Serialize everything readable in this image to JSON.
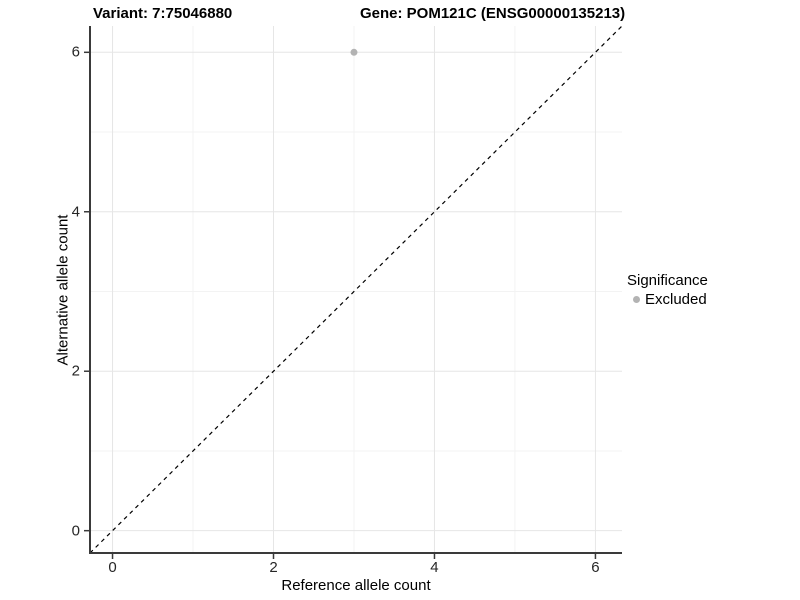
{
  "chart_data": {
    "type": "scatter",
    "title": "Variant: 7:75046880",
    "title_right": "Gene: POM121C (ENSG00000135213)",
    "xlabel": "Reference allele count",
    "ylabel": "Alternative allele count",
    "xlim": [
      -0.28,
      6.33
    ],
    "ylim": [
      -0.28,
      6.33
    ],
    "x_ticks": [
      0,
      2,
      4,
      6
    ],
    "y_ticks": [
      0,
      2,
      4,
      6
    ],
    "x_minor_ticks": [
      1,
      3,
      5
    ],
    "y_minor_ticks": [
      1,
      3,
      5
    ],
    "grid": true,
    "series": [
      {
        "name": "Excluded",
        "color": "#b3b3b3",
        "points": [
          {
            "x": 3,
            "y": 6
          }
        ]
      }
    ],
    "reference_line": {
      "type": "identity",
      "style": "dashed",
      "color": "#000000"
    },
    "legend": {
      "title": "Significance",
      "position": "right",
      "entries": [
        {
          "label": "Excluded",
          "color": "#b3b3b3"
        }
      ]
    }
  },
  "colors": {
    "background": "#ffffff",
    "grid_major": "#e6e6e6",
    "grid_minor": "#f3f3f3",
    "axis_line": "#3a3a3a",
    "tick_mark": "#3a3a3a",
    "point": "#b3b3b3",
    "dashed_line": "#000000"
  }
}
